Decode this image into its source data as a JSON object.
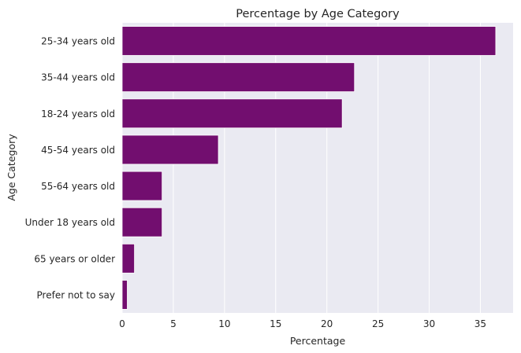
{
  "chart_data": {
    "type": "bar",
    "orientation": "horizontal",
    "title": "Percentage by Age Category",
    "xlabel": "Percentage",
    "ylabel": "Age Category",
    "categories": [
      "25-34 years old",
      "35-44 years old",
      "18-24 years old",
      "45-54 years old",
      "55-64 years old",
      "Under 18 years old",
      "65 years or older",
      "Prefer not to say"
    ],
    "values": [
      36.5,
      22.7,
      21.5,
      9.4,
      3.9,
      3.9,
      1.2,
      0.5
    ],
    "xlim": [
      0,
      38.2
    ],
    "xticks": [
      0,
      5,
      10,
      15,
      20,
      25,
      30,
      35
    ],
    "grid": true,
    "bar_color": "#720e6f",
    "plot_background": "#eaeaf2"
  }
}
